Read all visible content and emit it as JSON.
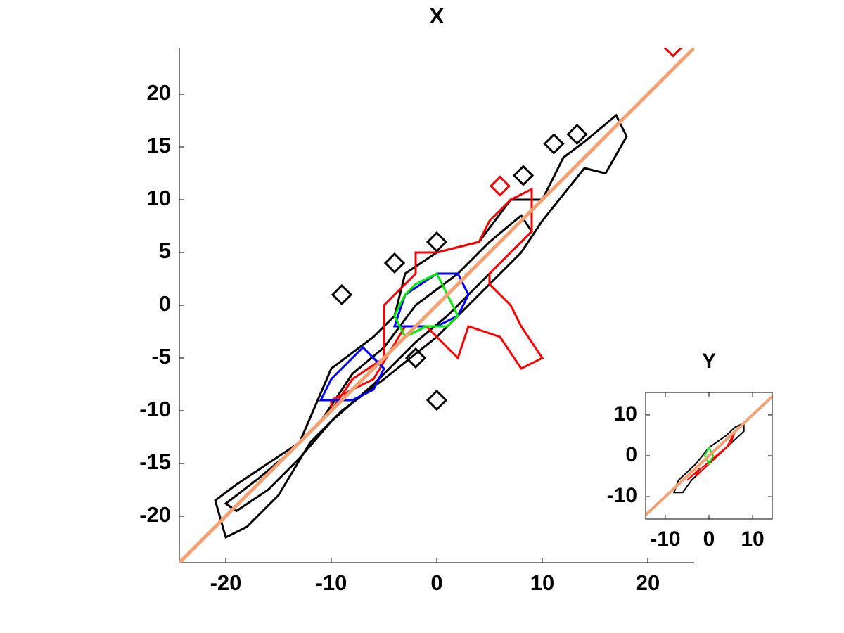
{
  "chart_data": [
    {
      "type": "line",
      "title": "X",
      "xlim": [
        -24.4,
        24.4
      ],
      "ylim": [
        -24.4,
        24.4
      ],
      "xticks": [
        -20,
        -10,
        0,
        10,
        20
      ],
      "yticks": [
        -20,
        -15,
        -10,
        -5,
        0,
        5,
        10,
        15,
        20
      ],
      "box": false,
      "series": [
        {
          "kind": "contour",
          "closed": true,
          "color": "#000000",
          "x": [
            -21,
            -19,
            -16,
            -13,
            -10,
            -6,
            -4,
            -3,
            0,
            4,
            7,
            10,
            12,
            14,
            17,
            18,
            16,
            14,
            10,
            8,
            5,
            3,
            0,
            -5,
            -9,
            -12,
            -15,
            -18,
            -20
          ],
          "y": [
            -18.5,
            -17,
            -15,
            -13,
            -6,
            -3,
            -1,
            3,
            5,
            6,
            10,
            10,
            14,
            15.5,
            18,
            16,
            12.5,
            13,
            8,
            5,
            2,
            0,
            -3,
            -7,
            -10,
            -13,
            -18,
            -21,
            -22
          ]
        },
        {
          "kind": "contour",
          "closed": true,
          "color": "#000000",
          "x": [
            -20,
            -17,
            -14,
            -11,
            -8,
            -5,
            -2,
            2,
            5,
            8,
            9,
            7,
            4,
            1,
            -2,
            -6,
            -10,
            -13,
            -16,
            -19
          ],
          "y": [
            -18.8,
            -16.5,
            -14,
            -11,
            -6.5,
            -4,
            0,
            3,
            6,
            8.5,
            7,
            5,
            2,
            -1,
            -3.5,
            -7.5,
            -11,
            -14.5,
            -17.5,
            -19.5
          ]
        },
        {
          "kind": "contour",
          "closed": true,
          "color": "#ff0000",
          "x": [
            -10,
            -8,
            -5,
            -5,
            -5,
            -2,
            -2,
            0,
            4,
            5,
            7,
            9,
            9,
            8,
            5,
            5,
            7,
            8,
            10,
            8,
            6,
            3,
            2,
            -1,
            -3,
            -6,
            -10
          ],
          "y": [
            -10,
            -7,
            -5,
            -3,
            0,
            3,
            5,
            5,
            6,
            8,
            10,
            11,
            7,
            6,
            3,
            2,
            0,
            -2,
            -5,
            -6,
            -3,
            -2,
            -5,
            -2,
            -2,
            -7,
            -9
          ]
        },
        {
          "kind": "contour",
          "closed": true,
          "color": "#0000ff",
          "x": [
            -11,
            -10,
            -7,
            -5,
            -6,
            -8
          ],
          "y": [
            -9,
            -7,
            -4,
            -6,
            -8,
            -9
          ]
        },
        {
          "kind": "contour",
          "closed": true,
          "color": "#0000ff",
          "x": [
            -4,
            -3,
            0,
            2,
            3,
            2,
            0,
            -3
          ],
          "y": [
            -2,
            1,
            3,
            3,
            1,
            -1,
            -2,
            -2
          ]
        },
        {
          "kind": "contour",
          "closed": true,
          "color": "#00ee00",
          "x": [
            -4,
            -3,
            -2,
            0,
            1,
            2,
            1,
            -1,
            -3
          ],
          "y": [
            -1,
            1,
            2,
            3,
            1,
            -1,
            -2,
            -2,
            -3
          ]
        },
        {
          "kind": "marker",
          "color": "#000000",
          "x": [
            -9,
            -4,
            0,
            -2,
            0,
            8.2,
            13.3,
            11.1
          ],
          "y": [
            1,
            4,
            6,
            -5,
            -9,
            12.3,
            16.2,
            15.3
          ]
        },
        {
          "kind": "marker",
          "color": "#ff0000",
          "x": [
            6,
            22.4
          ],
          "y": [
            11.3,
            24.5
          ]
        },
        {
          "kind": "line",
          "color": "#f4a070",
          "x": [
            -24.4,
            24.4
          ],
          "y": [
            -24.4,
            24.4
          ]
        }
      ]
    },
    {
      "type": "line",
      "title": "Y",
      "xlim": [
        -14.5,
        14.5
      ],
      "ylim": [
        -15.5,
        15.5
      ],
      "xticks": [
        -10,
        0,
        10
      ],
      "yticks": [
        -10,
        0,
        10
      ],
      "box": true,
      "series": [
        {
          "kind": "contour",
          "closed": true,
          "color": "#000000",
          "x": [
            -8,
            -7,
            -3,
            0,
            4,
            6,
            8,
            8,
            5,
            2,
            -1,
            -4,
            -6
          ],
          "y": [
            -9,
            -6,
            -2,
            2,
            5,
            7,
            8,
            6,
            3,
            0,
            -3,
            -6,
            -9
          ]
        },
        {
          "kind": "contour",
          "closed": true,
          "color": "#ff0000",
          "x": [
            -5,
            -2,
            -3,
            4,
            6,
            5
          ],
          "y": [
            -6,
            -3,
            -5,
            2,
            6,
            3
          ]
        },
        {
          "kind": "contour",
          "closed": true,
          "color": "#00ee00",
          "x": [
            0,
            1,
            0,
            -1
          ],
          "y": [
            2,
            0,
            -2,
            0
          ]
        },
        {
          "kind": "line",
          "color": "#f4a070",
          "x": [
            -14.5,
            14.5
          ],
          "y": [
            -14.5,
            14.5
          ]
        }
      ]
    }
  ]
}
